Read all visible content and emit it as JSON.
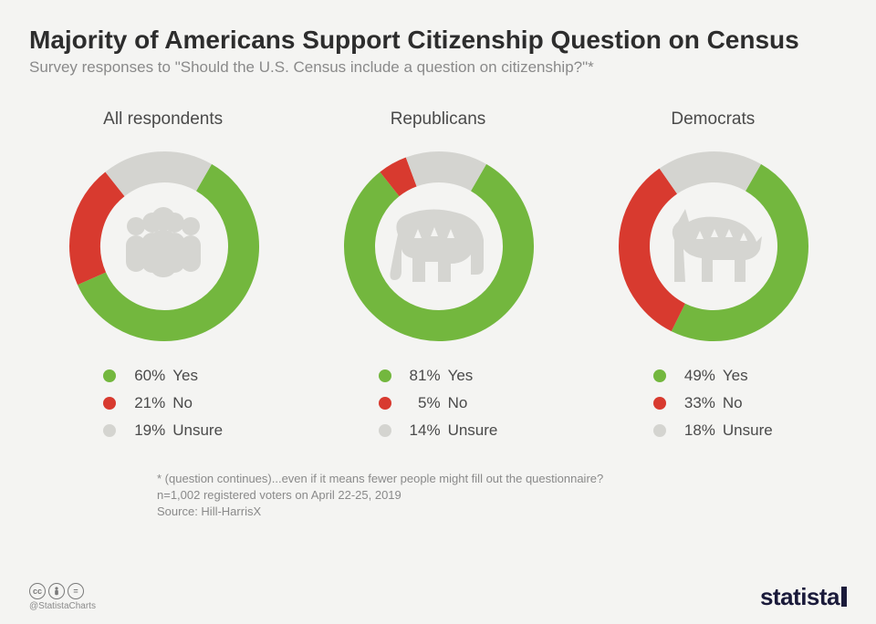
{
  "title": "Majority of Americans Support Citizenship Question on Census",
  "subtitle": "Survey responses to \"Should the U.S. Census include a question on citizenship?\"*",
  "colors": {
    "yes": "#73b73e",
    "no": "#d83a2f",
    "unsure": "#d4d4d0",
    "bg": "#f4f4f2",
    "text_dark": "#2d2d2d",
    "text_muted": "#8a8a8a",
    "icon_gray": "#d0d0cc"
  },
  "legend_labels": {
    "yes": "Yes",
    "no": "No",
    "unsure": "Unsure"
  },
  "donut": {
    "outer_r": 104,
    "inner_r": 70,
    "start_angle_deg": 30,
    "stroke_width": 34
  },
  "charts": [
    {
      "title": "All respondents",
      "icon": "people",
      "slices": [
        {
          "key": "yes",
          "value": 60
        },
        {
          "key": "no",
          "value": 21
        },
        {
          "key": "unsure",
          "value": 19
        }
      ]
    },
    {
      "title": "Republicans",
      "icon": "elephant",
      "slices": [
        {
          "key": "yes",
          "value": 81
        },
        {
          "key": "no",
          "value": 5
        },
        {
          "key": "unsure",
          "value": 14
        }
      ]
    },
    {
      "title": "Democrats",
      "icon": "donkey",
      "slices": [
        {
          "key": "yes",
          "value": 49
        },
        {
          "key": "no",
          "value": 33
        },
        {
          "key": "unsure",
          "value": 18
        }
      ]
    }
  ],
  "footnote_line1": "* (question continues)...even if it means fewer people might fill out the questionnaire?",
  "footnote_line2": "n=1,002 registered voters on April 22-25, 2019",
  "footnote_line3": "Source: Hill-HarrisX",
  "handle": "@StatistaCharts",
  "logo_text": "statista"
}
